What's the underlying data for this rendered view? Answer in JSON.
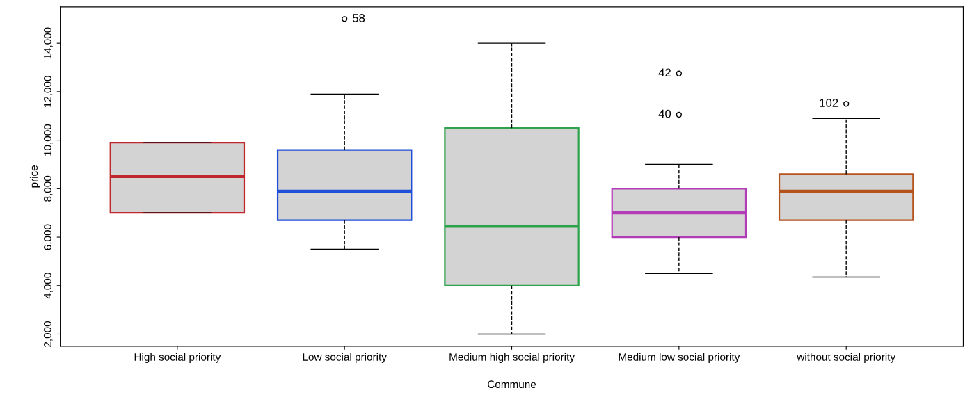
{
  "chart_data": {
    "type": "box",
    "xlabel": "Commune",
    "ylabel": "price",
    "categories": [
      "High social priority",
      "Low social priority",
      "Medium high social priority",
      "Medium low social priority",
      "without social priority"
    ],
    "colors": [
      "#c0272d",
      "#1f4fd8",
      "#2ca24a",
      "#b23cb8",
      "#b5521b"
    ],
    "boxes": [
      {
        "low": 7000,
        "q1": 7000,
        "median": 8500,
        "q3": 9900,
        "high": 9900
      },
      {
        "low": 5500,
        "q1": 6700,
        "median": 7900,
        "q3": 9600,
        "high": 11900,
        "outliers": [
          15000
        ]
      },
      {
        "low": 2000,
        "q1": 4000,
        "median": 6450,
        "q3": 10500,
        "high": 14000
      },
      {
        "low": 4500,
        "q1": 6000,
        "median": 7000,
        "q3": 8000,
        "high": 9000,
        "outliers": [
          11050,
          12750
        ]
      },
      {
        "low": 4350,
        "q1": 6700,
        "median": 7900,
        "q3": 8600,
        "high": 10900,
        "outliers": [
          11500
        ]
      }
    ],
    "ylim": [
      1500,
      15500
    ],
    "yticks": [
      {
        "value": 2000,
        "label": "2,000"
      },
      {
        "value": 4000,
        "label": "4,000"
      },
      {
        "value": 6000,
        "label": "6,000"
      },
      {
        "value": 8000,
        "label": "8,000"
      },
      {
        "value": 10000,
        "label": "10,000"
      },
      {
        "value": 12000,
        "label": "12,000"
      },
      {
        "value": 14000,
        "label": "14,000"
      }
    ],
    "annotations": [
      "58",
      "40",
      "42",
      "102"
    ],
    "grid": false
  }
}
